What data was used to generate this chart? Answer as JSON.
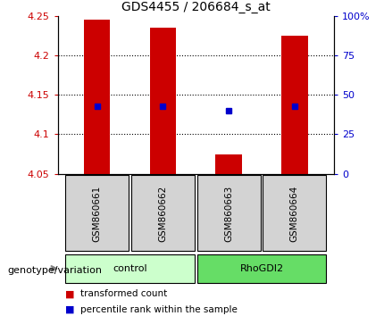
{
  "title": "GDS4455 / 206684_s_at",
  "samples": [
    "GSM860661",
    "GSM860662",
    "GSM860663",
    "GSM860664"
  ],
  "bar_tops": [
    4.245,
    4.235,
    4.075,
    4.225
  ],
  "blue_y": [
    4.135,
    4.135,
    4.13,
    4.135
  ],
  "ymin": 4.05,
  "ymax": 4.25,
  "yticks": [
    4.05,
    4.1,
    4.15,
    4.2,
    4.25
  ],
  "ytick_labels": [
    "4.05",
    "4.1",
    "4.15",
    "4.2",
    "4.25"
  ],
  "right_yticks": [
    0,
    25,
    50,
    75,
    100
  ],
  "right_ytick_labels": [
    "0",
    "25",
    "50",
    "75",
    "100%"
  ],
  "hlines": [
    4.1,
    4.15,
    4.2
  ],
  "bar_color": "#cc0000",
  "blue_color": "#0000cc",
  "left_tick_color": "#cc0000",
  "right_tick_color": "#0000cc",
  "groups": [
    {
      "label": "control",
      "samples": [
        0,
        1
      ],
      "color": "#ccffcc"
    },
    {
      "label": "RhoGDI2",
      "samples": [
        2,
        3
      ],
      "color": "#66dd66"
    }
  ],
  "genotype_label": "genotype/variation",
  "legend_items": [
    {
      "color": "#cc0000",
      "label": "transformed count"
    },
    {
      "color": "#0000cc",
      "label": "percentile rank within the sample"
    }
  ],
  "bar_width": 0.4
}
